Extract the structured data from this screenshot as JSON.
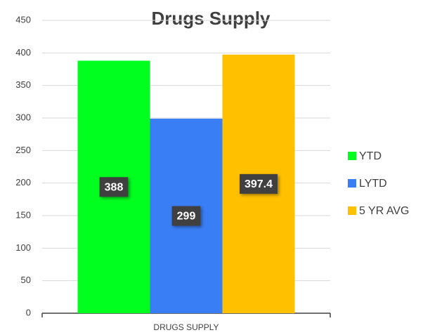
{
  "chart_data": {
    "type": "bar",
    "title": "Drugs Supply",
    "categories": [
      "DRUGS SUPPLY"
    ],
    "series": [
      {
        "name": "YTD",
        "color": "#00ff1e",
        "values": [
          388
        ]
      },
      {
        "name": "LYTD",
        "color": "#3a7ef5",
        "values": [
          299
        ]
      },
      {
        "name": "5 YR AVG",
        "color": "#ffc000",
        "values": [
          397.4
        ]
      }
    ],
    "ylim": [
      0,
      450
    ],
    "yticks": [
      0,
      50,
      100,
      150,
      200,
      250,
      300,
      350,
      400,
      450
    ],
    "grid": true,
    "legend": "right"
  }
}
